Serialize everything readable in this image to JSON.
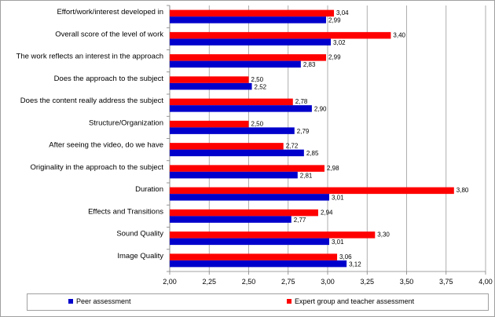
{
  "chart_data": {
    "type": "bar",
    "orientation": "horizontal",
    "categories": [
      "Effort/work/interest developed in",
      "Overall score of the level of work",
      "The work reflects an interest in the approach",
      "Does the approach to the subject",
      "Does the content really address the subject",
      "Structure/Organization",
      "After seeing the video, do we have",
      "Originality in the approach to the subject",
      "Duration",
      "Effects and Transitions",
      "Sound Quality",
      "Image Quality"
    ],
    "series": [
      {
        "name": "Expert group and teacher assessment",
        "color": "#ff0000",
        "values": [
          3.04,
          3.4,
          2.99,
          2.5,
          2.78,
          2.5,
          2.72,
          2.98,
          3.8,
          2.94,
          3.3,
          3.06
        ],
        "labels": [
          "3,04",
          "3,40",
          "2,99",
          "2,50",
          "2,78",
          "2,50",
          "2,72",
          "2,98",
          "3,80",
          "2,94",
          "3,30",
          "3,06"
        ]
      },
      {
        "name": "Peer assessment",
        "color": "#0000cc",
        "values": [
          2.99,
          3.02,
          2.83,
          2.52,
          2.9,
          2.79,
          2.85,
          2.81,
          3.01,
          2.77,
          3.01,
          3.12
        ],
        "labels": [
          "2,99",
          "3,02",
          "2,83",
          "2,52",
          "2,90",
          "2,79",
          "2,85",
          "2,81",
          "3,01",
          "2,77",
          "3,01",
          "3,12"
        ]
      }
    ],
    "xlim": [
      2.0,
      4.0
    ],
    "xticks": [
      2.0,
      2.25,
      2.5,
      2.75,
      3.0,
      3.25,
      3.5,
      3.75,
      4.0
    ],
    "xtick_labels": [
      "2,00",
      "2,25",
      "2,50",
      "2,75",
      "3,00",
      "3,25",
      "3,50",
      "3,75",
      "4,00"
    ],
    "grid": "vertical",
    "legend_position": "bottom",
    "title": "",
    "xlabel": "",
    "ylabel": ""
  },
  "legend": {
    "peer_label": "Peer assessment",
    "expert_label": "Expert group and teacher assessment"
  }
}
